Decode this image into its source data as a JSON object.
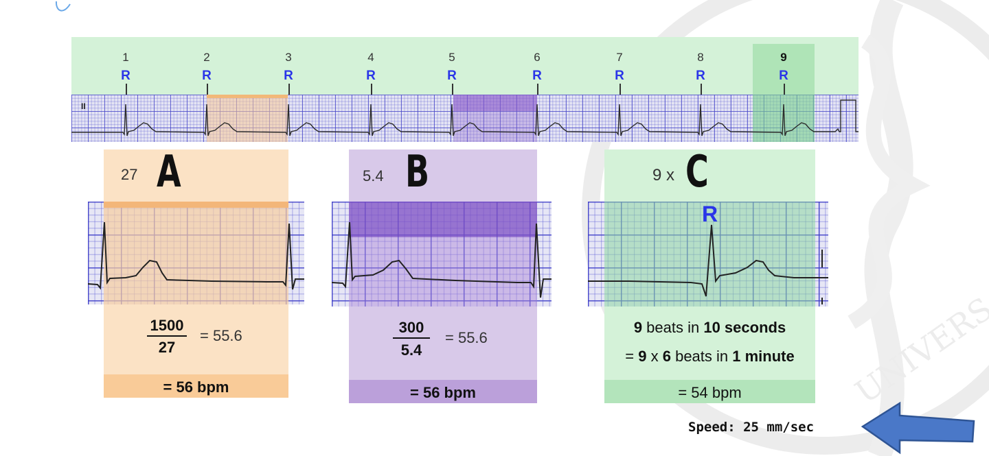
{
  "beats": [
    {
      "num": "1",
      "r": "R"
    },
    {
      "num": "2",
      "r": "R"
    },
    {
      "num": "3",
      "r": "R"
    },
    {
      "num": "4",
      "r": "R"
    },
    {
      "num": "5",
      "r": "R"
    },
    {
      "num": "6",
      "r": "R"
    },
    {
      "num": "7",
      "r": "R"
    },
    {
      "num": "8",
      "r": "R"
    },
    {
      "num": "9",
      "r": "R"
    }
  ],
  "strip": {
    "lead_label": "II"
  },
  "panels": {
    "a": {
      "value": "27",
      "letter": "A",
      "numerator": "1500",
      "denominator": "27",
      "equals": "= 55.6",
      "result": "= 56 bpm"
    },
    "b": {
      "value": "5.4",
      "letter": "B",
      "numerator": "300",
      "denominator": "5.4",
      "equals": "= 55.6",
      "result": "= 56 bpm"
    },
    "c": {
      "value": "9 x",
      "letter": "C",
      "r_label": "R",
      "line1": {
        "p1": "9",
        "p2": " beats in ",
        "p3": "10 seconds"
      },
      "line2": {
        "p1": "= ",
        "p2": "9",
        "p3": " x ",
        "p4": "6",
        "p5": " beats in ",
        "p6": "1 minute"
      },
      "result": "= 54 bpm"
    }
  },
  "speed": "Speed: 25 mm/sec",
  "colors": {
    "orange": "#fbe2c5",
    "orange_dark": "#f9cb98",
    "purple": "#d8c9e9",
    "purple_dark": "#bba0da",
    "green": "#d4f2d8",
    "green_dark": "#b3e4bb",
    "arrow": "#4a78c8",
    "r_blue": "#2a35e8"
  }
}
